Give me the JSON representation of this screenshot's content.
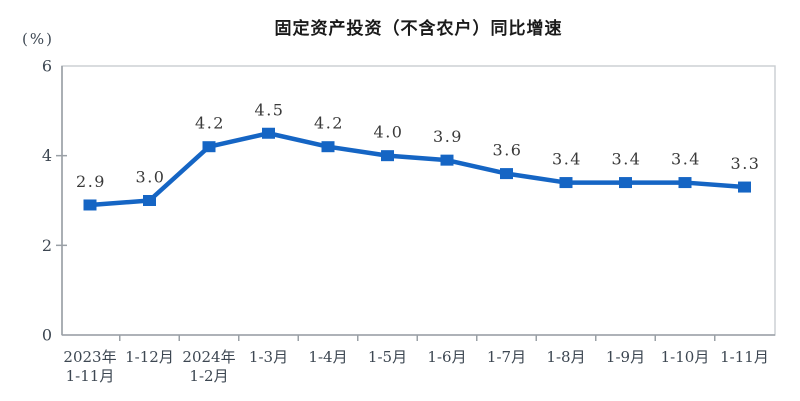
{
  "title": "固定资产投资（不含农户）同比增速",
  "unit_label": "(%)",
  "chart_data": {
    "type": "line",
    "categories": [
      "2023年\n1-11月",
      "1-12月",
      "2024年\n1-2月",
      "1-3月",
      "1-4月",
      "1-5月",
      "1-6月",
      "1-7月",
      "1-8月",
      "1-9月",
      "1-10月",
      "1-11月"
    ],
    "values": [
      2.9,
      3.0,
      4.2,
      4.5,
      4.2,
      4.0,
      3.9,
      3.6,
      3.4,
      3.4,
      3.4,
      3.3
    ],
    "title": "固定资产投资（不含农户）同比增速",
    "xlabel": "",
    "ylabel": "(%)",
    "ylim": [
      0,
      6
    ],
    "yticks": [
      0,
      2,
      4,
      6
    ],
    "grid": false,
    "legend": "none",
    "marker": "square",
    "line_color": "#1565c4",
    "axis_color": "#9aa0a6",
    "border_color": "#c9cdd1",
    "text_color": "#3d4752"
  }
}
